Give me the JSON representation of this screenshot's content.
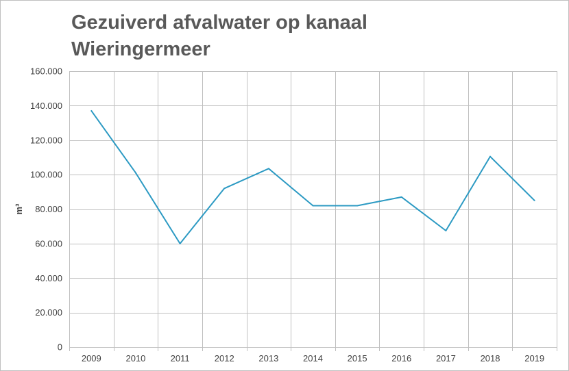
{
  "chart_data": {
    "type": "line",
    "title": "Gezuiverd afvalwater op kanaal Wieringermeer",
    "xlabel": "",
    "ylabel": "m³",
    "categories": [
      "2009",
      "2010",
      "2011",
      "2012",
      "2013",
      "2014",
      "2015",
      "2016",
      "2017",
      "2018",
      "2019"
    ],
    "values": [
      137000,
      101000,
      60000,
      92000,
      103500,
      82000,
      82000,
      87000,
      67500,
      110500,
      85000
    ],
    "ylim": [
      0,
      160000
    ],
    "yticks": [
      0,
      20000,
      40000,
      60000,
      80000,
      100000,
      120000,
      140000,
      160000
    ],
    "ytick_labels": [
      "0",
      "20.000",
      "40.000",
      "60.000",
      "80.000",
      "100.000",
      "120.000",
      "140.000",
      "160.000"
    ],
    "grid": true,
    "legend": "none",
    "line_color": "#2c9ac3",
    "grid_color": "#bfbfbf"
  }
}
